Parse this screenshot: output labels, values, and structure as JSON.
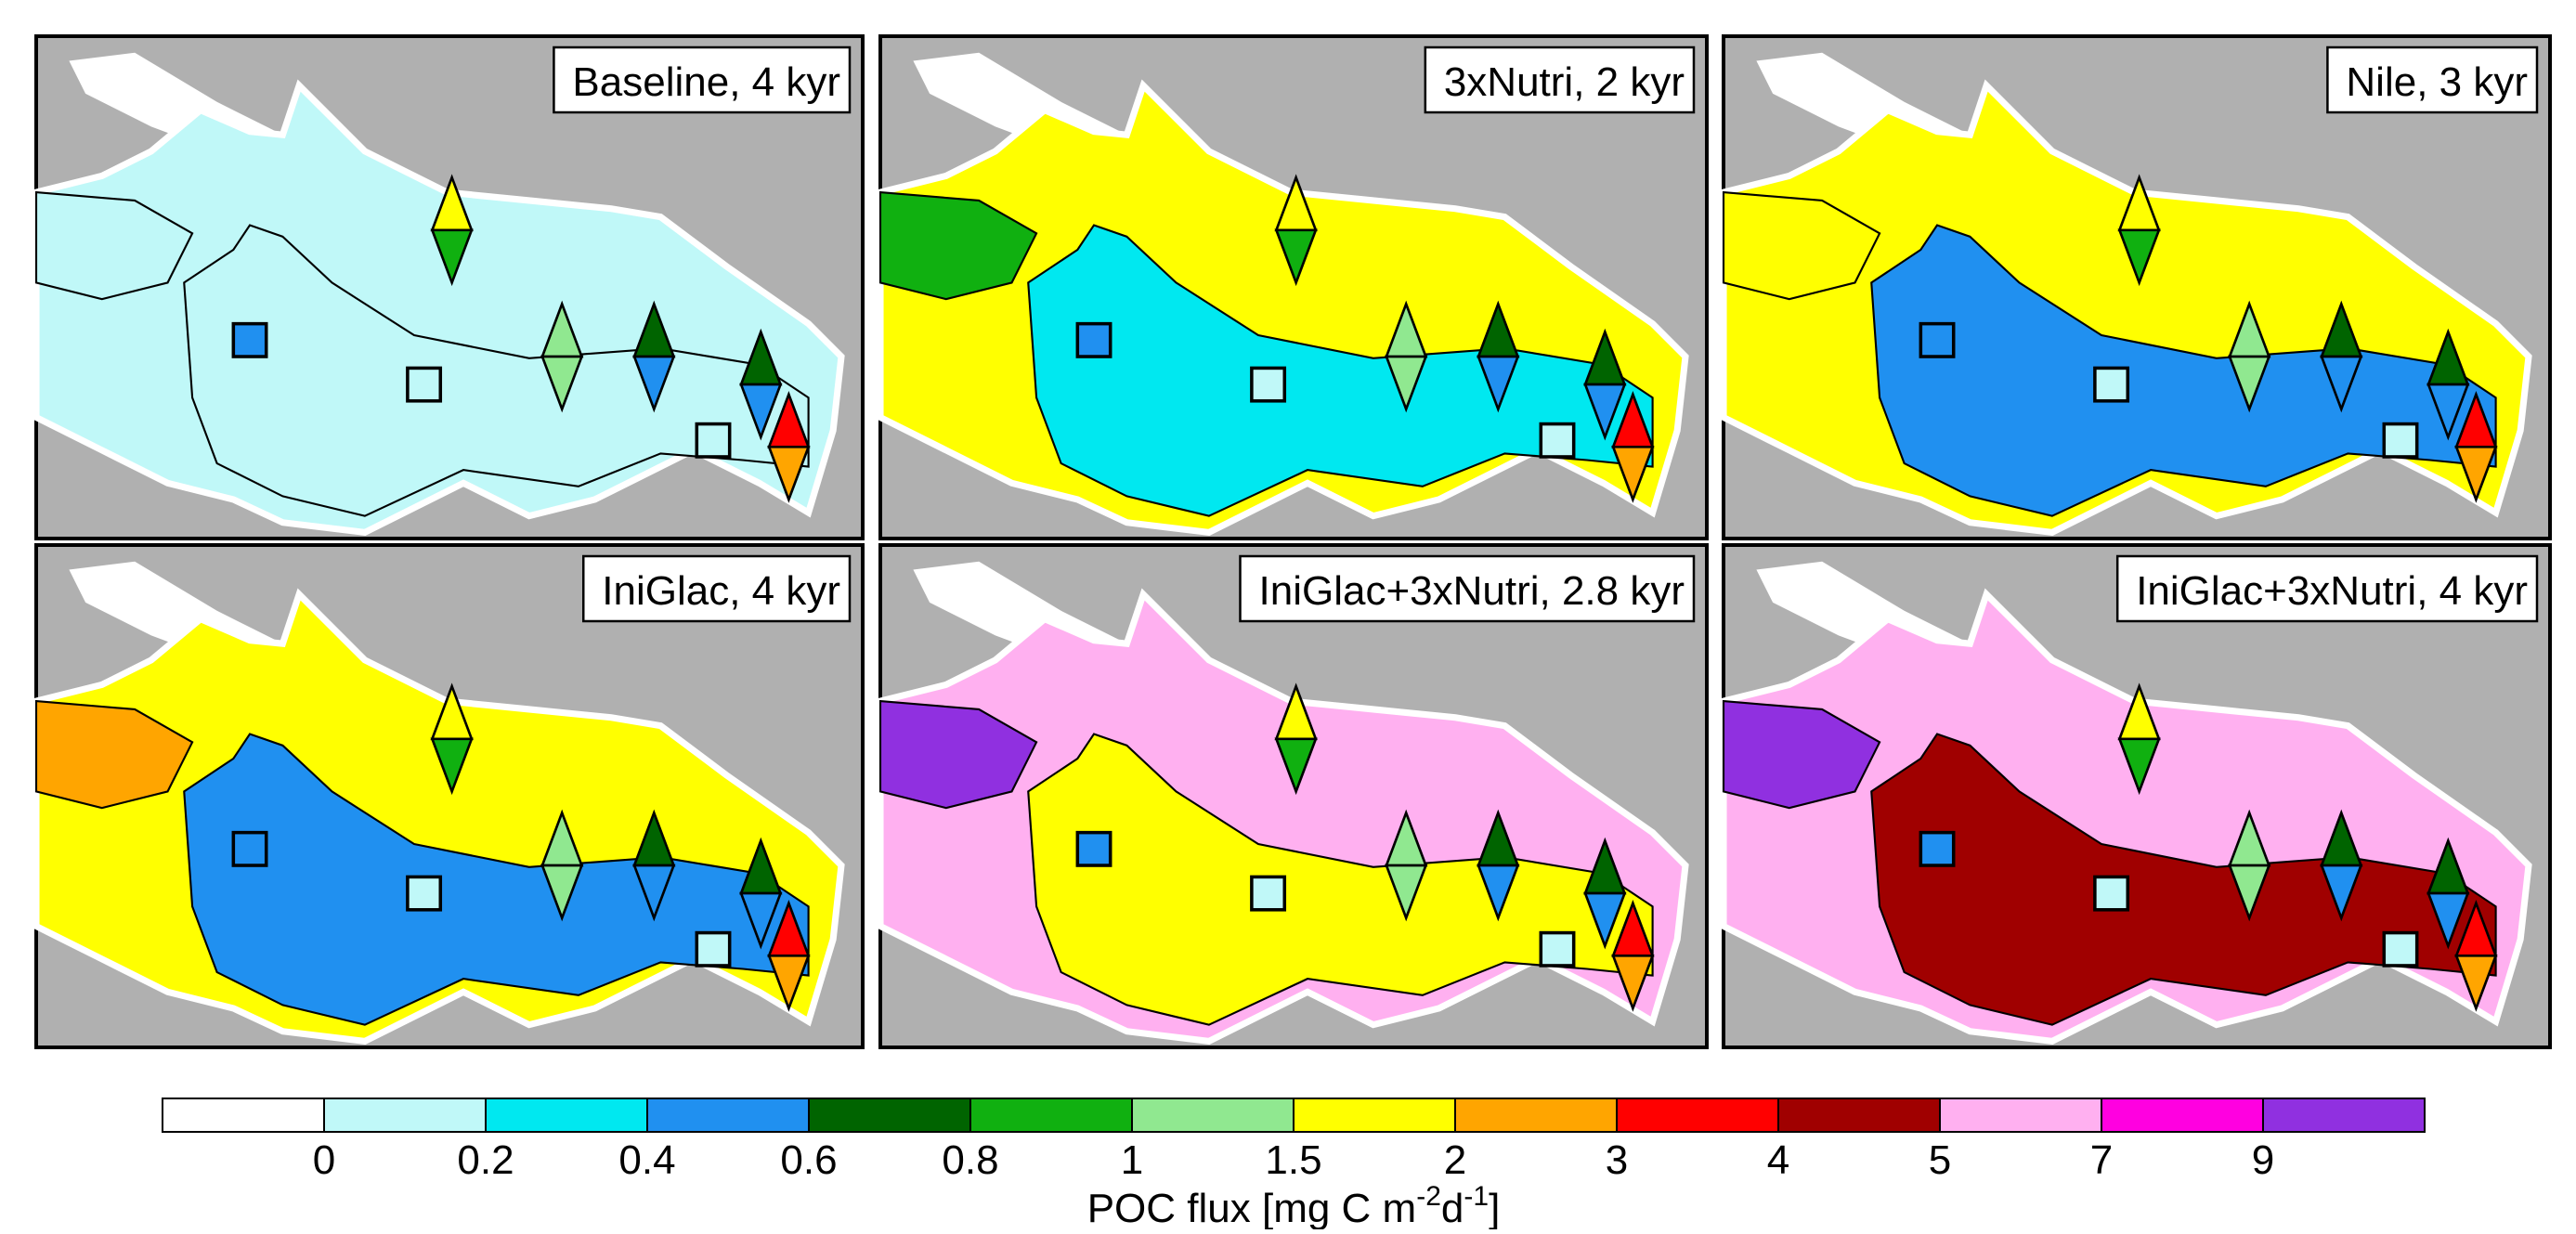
{
  "panels": [
    {
      "title": "Baseline, 4 kyr",
      "colors": [
        "#c0f8f8",
        "#c0f8f8",
        "#c0f8f8"
      ]
    },
    {
      "title": "3xNutri, 2 kyr",
      "colors": [
        "#ffff00",
        "#00e8f0",
        "#10b010"
      ]
    },
    {
      "title": "Nile, 3 kyr",
      "colors": [
        "#ffff00",
        "#2090f0",
        "#ffff00"
      ]
    },
    {
      "title": "IniGlac, 4 kyr",
      "colors": [
        "#ffff00",
        "#2090f0",
        "#ffa500"
      ]
    },
    {
      "title": "IniGlac+3xNutri, 2.8 kyr",
      "colors": [
        "#ffb0f0",
        "#ffff00",
        "#9030e0"
      ]
    },
    {
      "title": "IniGlac+3xNutri, 4 kyr",
      "colors": [
        "#ffb0f0",
        "#a00000",
        "#9030e0"
      ]
    }
  ],
  "colorbar": {
    "colors": [
      "#ffffff",
      "#c0f8f8",
      "#00e8f0",
      "#2090f0",
      "#006400",
      "#10b010",
      "#90e890",
      "#ffff00",
      "#ffa500",
      "#ff0000",
      "#a00000",
      "#ffb0f0",
      "#ff00e0",
      "#9030e0"
    ],
    "ticks": [
      0,
      0.2,
      0.4,
      0.6,
      0.8,
      1,
      1.5,
      2,
      3,
      4,
      5,
      7,
      9
    ],
    "label": [
      "POC flux [mg C m",
      "-2",
      "d",
      "-1",
      "]"
    ]
  }
}
